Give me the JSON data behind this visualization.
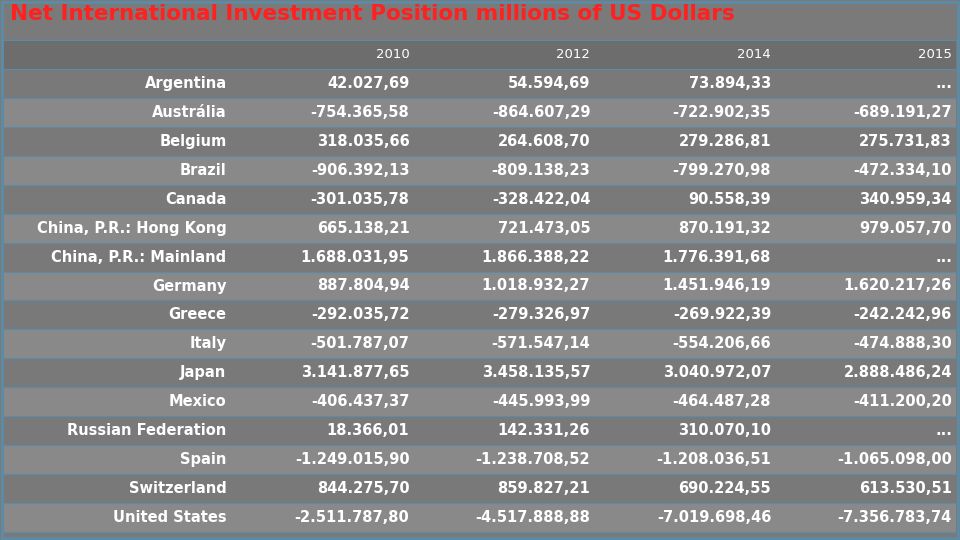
{
  "title": "Net International Investment Position millions of US Dollars",
  "title_color": "#FF2020",
  "title_fontsize": 15.5,
  "bg_color": "#7A7A7A",
  "row_colors_alt": [
    "#898989",
    "#797979"
  ],
  "header_bg": "#6D6D6D",
  "border_color": "#5A8CA8",
  "text_color": "#FFFFFF",
  "columns": [
    "",
    "2010",
    "2012",
    "2014",
    "2015"
  ],
  "rows": [
    [
      "Argentina",
      "42.027,69",
      "54.594,69",
      "73.894,33",
      "..."
    ],
    [
      "Austrália",
      "-754.365,58",
      "-864.607,29",
      "-722.902,35",
      "-689.191,27"
    ],
    [
      "Belgium",
      "318.035,66",
      "264.608,70",
      "279.286,81",
      "275.731,83"
    ],
    [
      "Brazil",
      "-906.392,13",
      "-809.138,23",
      "-799.270,98",
      "-472.334,10"
    ],
    [
      "Canada",
      "-301.035,78",
      "-328.422,04",
      "90.558,39",
      "340.959,34"
    ],
    [
      "China, P.R.: Hong Kong",
      "665.138,21",
      "721.473,05",
      "870.191,32",
      "979.057,70"
    ],
    [
      "China, P.R.: Mainland",
      "1.688.031,95",
      "1.866.388,22",
      "1.776.391,68",
      "..."
    ],
    [
      "Germany",
      "887.804,94",
      "1.018.932,27",
      "1.451.946,19",
      "1.620.217,26"
    ],
    [
      "Greece",
      "-292.035,72",
      "-279.326,97",
      "-269.922,39",
      "-242.242,96"
    ],
    [
      "Italy",
      "-501.787,07",
      "-571.547,14",
      "-554.206,66",
      "-474.888,30"
    ],
    [
      "Japan",
      "3.141.877,65",
      "3.458.135,57",
      "3.040.972,07",
      "2.888.486,24"
    ],
    [
      "Mexico",
      "-406.437,37",
      "-445.993,99",
      "-464.487,28",
      "-411.200,20"
    ],
    [
      "Russian Federation",
      "18.366,01",
      "142.331,26",
      "310.070,10",
      "..."
    ],
    [
      "Spain",
      "-1.249.015,90",
      "-1.238.708,52",
      "-1.208.036,51",
      "-1.065.098,00"
    ],
    [
      "Switzerland",
      "844.275,70",
      "859.827,21",
      "690.224,55",
      "613.530,51"
    ],
    [
      "United States",
      "-2.511.787,80",
      "-4.517.888,88",
      "-7.019.698,46",
      "-7.356.783,74"
    ]
  ],
  "cell_fontsize": 10.5,
  "header_fontsize": 9.5
}
